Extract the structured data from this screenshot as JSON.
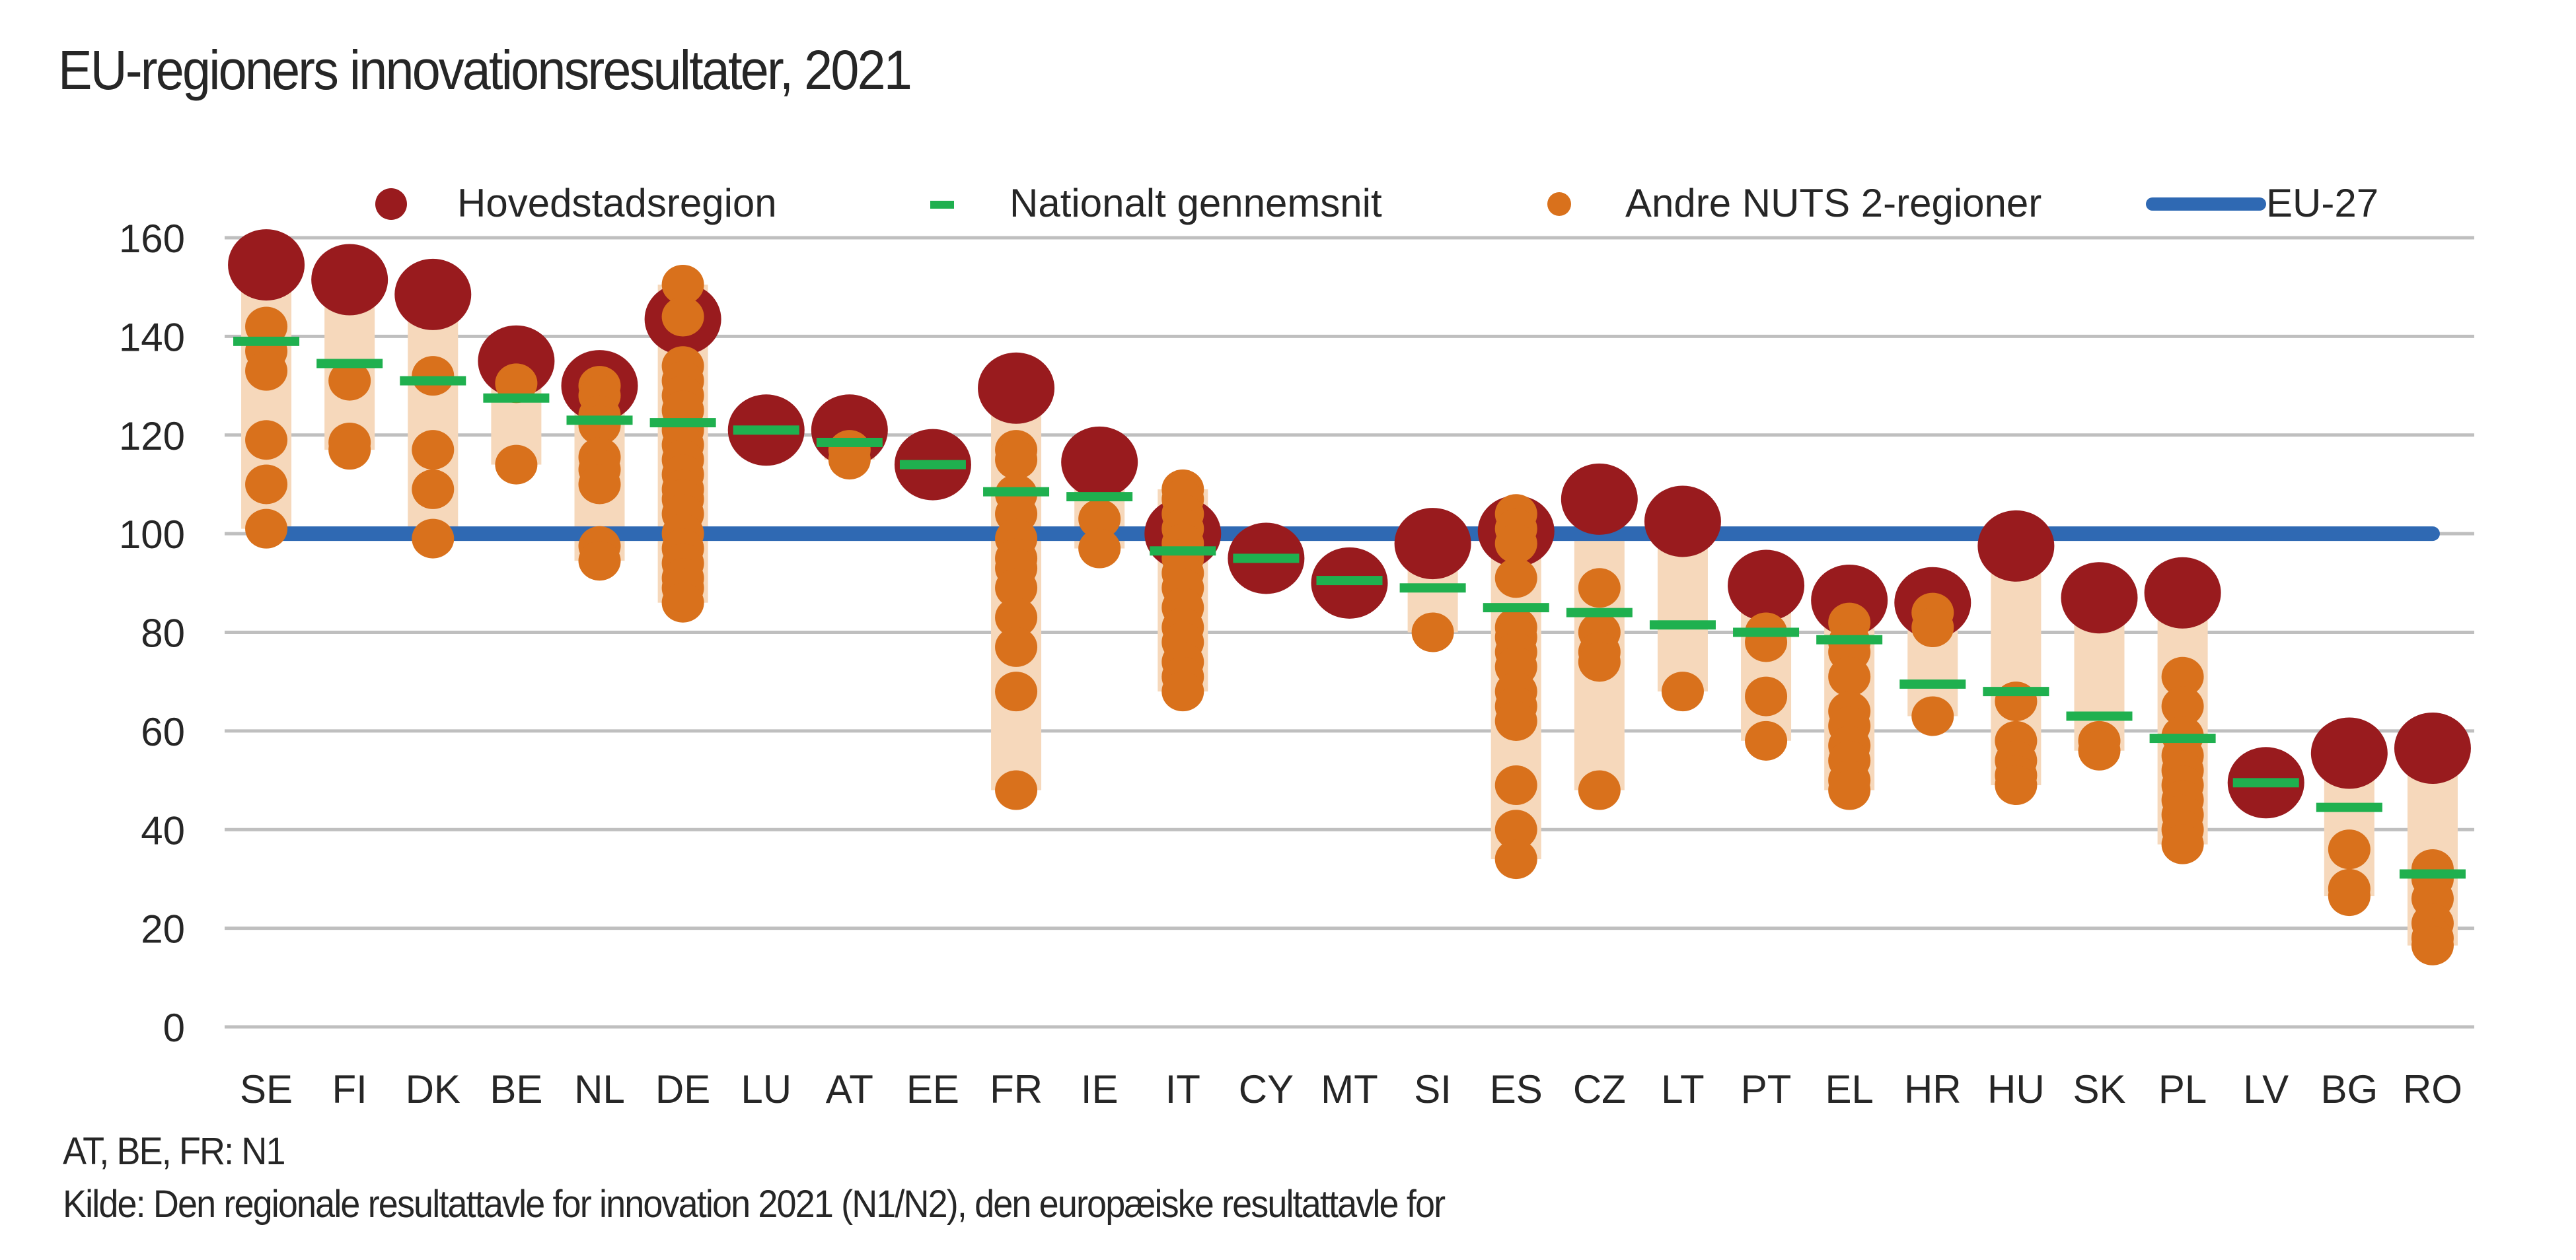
{
  "title": "EU-regioners innovationsresultater, 2021",
  "notes": [
    "AT, BE, FR: N1",
    "Kilde: Den regionale resultattavle for innovation 2021 (N1/N2), den europæiske resultattavle for"
  ],
  "colors": {
    "capital": "#991b1e",
    "national": "#1fb04f",
    "other": "#d9711c",
    "range": "#f6d8bb",
    "eu": "#2f69b3",
    "grid": "#bfbfbf"
  },
  "chart_data": {
    "type": "scatter",
    "title": "EU-regioners innovationsresultater, 2021",
    "xlabel": "",
    "ylabel": "",
    "ylim": [
      0,
      160
    ],
    "yticks": [
      0,
      20,
      40,
      60,
      80,
      100,
      120,
      140,
      160
    ],
    "grid": true,
    "legend_position": "top",
    "legend": [
      "Hovedstadsregion",
      "Nationalt gennemsnit",
      "Andre NUTS 2-regioner",
      "EU-27"
    ],
    "eu27": 100,
    "categories": [
      "SE",
      "FI",
      "DK",
      "BE",
      "NL",
      "DE",
      "LU",
      "AT",
      "EE",
      "FR",
      "IE",
      "IT",
      "CY",
      "MT",
      "SI",
      "ES",
      "CZ",
      "LT",
      "PT",
      "EL",
      "HR",
      "HU",
      "SK",
      "PL",
      "LV",
      "BG",
      "RO"
    ],
    "capital": [
      154.5,
      151.5,
      148.5,
      135,
      130,
      143.5,
      121,
      121,
      114,
      129.5,
      114.5,
      100,
      95,
      90,
      98,
      100.5,
      107,
      102.5,
      89.5,
      86.5,
      86,
      97.5,
      87,
      88,
      49.5,
      55.5,
      56.5
    ],
    "national": [
      139,
      134.5,
      131,
      127.5,
      123,
      122.5,
      121,
      118.5,
      114,
      108.5,
      107.5,
      96.5,
      95,
      90.5,
      89,
      85,
      84,
      81.5,
      80,
      78.5,
      69.5,
      68,
      63,
      58.5,
      49.5,
      44.5,
      31
    ],
    "others": [
      [
        142,
        137,
        133,
        119,
        110,
        101
      ],
      [
        131,
        118.5,
        117
      ],
      [
        132,
        117,
        109,
        99
      ],
      [
        130.5,
        114
      ],
      [
        130,
        128,
        124,
        122,
        115.5,
        113,
        110,
        97.5,
        94.5
      ],
      [
        150.5,
        144,
        134,
        131,
        128,
        125,
        121,
        118,
        115,
        112,
        109,
        107,
        104,
        100,
        97,
        94,
        91,
        89,
        86
      ],
      [],
      [
        117,
        115
      ],
      [],
      [
        117,
        115,
        108,
        104,
        99,
        95,
        93,
        89,
        83,
        77,
        68,
        48
      ],
      [
        103,
        97
      ],
      [
        109,
        107,
        104,
        101,
        98,
        95,
        92,
        89,
        85,
        81,
        78,
        74,
        71,
        68
      ],
      [],
      [],
      [
        80
      ],
      [
        104,
        101,
        98,
        91,
        81,
        79,
        76,
        73,
        68,
        65,
        62,
        49,
        40,
        34
      ],
      [
        89,
        80,
        76,
        74,
        48
      ],
      [
        68
      ],
      [
        80,
        78,
        67,
        58
      ],
      [
        82,
        78,
        76,
        71,
        64,
        61,
        57,
        54,
        50,
        48
      ],
      [
        84,
        81,
        63
      ],
      [
        66,
        58,
        54,
        51,
        49
      ],
      [
        58,
        56
      ],
      [
        71,
        65,
        59,
        55,
        52,
        49,
        46,
        43,
        40,
        37
      ],
      [],
      [
        36,
        28,
        26.5
      ],
      [
        32,
        30,
        26,
        21,
        18,
        16.5
      ]
    ]
  },
  "legend_items": [
    {
      "label": "Hovedstadsregion"
    },
    {
      "label": "Nationalt gennemsnit"
    },
    {
      "label": "Andre NUTS 2-regioner"
    },
    {
      "label": "EU-27"
    }
  ]
}
